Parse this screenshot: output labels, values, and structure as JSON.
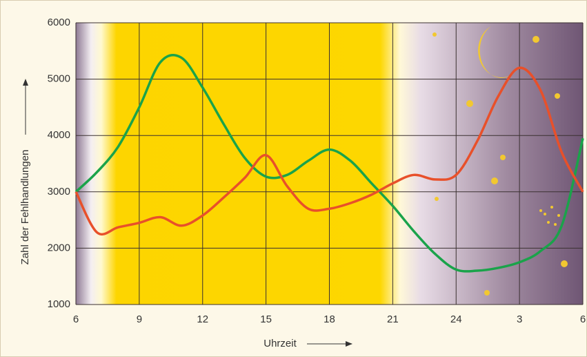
{
  "chart_data": {
    "type": "line",
    "x_label": "Uhrzeit",
    "y_label": "Zahl der Fehlhandlungen",
    "x": [
      6,
      7,
      8,
      9,
      10,
      11,
      12,
      13,
      14,
      15,
      16,
      17,
      18,
      19,
      20,
      21,
      22,
      23,
      24,
      25,
      26,
      27,
      28,
      29,
      30
    ],
    "series": [
      {
        "color": "#1aa34a",
        "values": [
          3000,
          3350,
          3800,
          4500,
          5300,
          5380,
          4850,
          4200,
          3600,
          3270,
          3300,
          3550,
          3750,
          3550,
          3150,
          2750,
          2300,
          1900,
          1620,
          1600,
          1650,
          1750,
          1950,
          2400,
          3950
        ]
      },
      {
        "color": "#e8502a",
        "values": [
          3000,
          2280,
          2370,
          2450,
          2550,
          2400,
          2580,
          2900,
          3250,
          3650,
          3100,
          2700,
          2700,
          2800,
          2950,
          3150,
          3300,
          3220,
          3300,
          3900,
          4700,
          5200,
          4800,
          3700,
          3000
        ]
      }
    ],
    "xlim": [
      6,
      30
    ],
    "xticks": [
      6,
      9,
      12,
      15,
      18,
      21,
      24,
      {
        "value": 27,
        "label": "3"
      },
      {
        "value": 30,
        "label": "6"
      }
    ],
    "ylim": [
      1000,
      6000
    ],
    "yticks": [
      1000,
      2000,
      3000,
      4000,
      5000,
      6000
    ],
    "grid": true
  }
}
